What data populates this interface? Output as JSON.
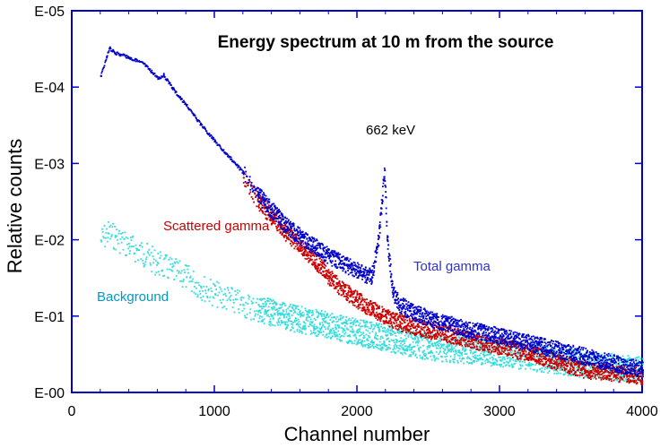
{
  "chart_data": {
    "type": "scatter",
    "title": "Energy spectrum at 10 m from the source",
    "xlabel": "Channel number",
    "ylabel": "Relative counts",
    "xlim": [
      0,
      4000
    ],
    "ylim": [
      1,
      1e-05
    ],
    "y_scale": "log",
    "grid": false,
    "x_ticks": [
      0,
      1000,
      2000,
      3000,
      4000
    ],
    "x_tick_labels": [
      "0",
      "1000",
      "2000",
      "3000",
      "4000"
    ],
    "y_ticks": [
      1e-05,
      0.0001,
      0.001,
      0.01,
      0.1,
      1
    ],
    "y_tick_labels": [
      "E-05",
      "E-04",
      "E-03",
      "E-02",
      "E-01",
      "E-00"
    ],
    "annotations": [
      {
        "text": "662 keV",
        "color": "#000000"
      },
      {
        "text": "Scattered gamma",
        "color": "#cc0000"
      },
      {
        "text": "Total gamma",
        "color": "#3333cc"
      },
      {
        "text": "Background",
        "color": "#0099cc"
      }
    ],
    "series": [
      {
        "name": "Total gamma",
        "color": "#0000cc",
        "x": [
          200,
          240,
          260,
          300,
          400,
          500,
          600,
          640,
          700,
          800,
          900,
          1000,
          1100,
          1200,
          1300,
          1400,
          1500,
          1600,
          1700,
          1800,
          1900,
          2000,
          2100,
          2150,
          2190,
          2210,
          2250,
          2300,
          2400,
          2600,
          2800,
          3000,
          3500,
          4000
        ],
        "y": [
          7e-05,
          4e-05,
          3e-05,
          3.5e-05,
          4e-05,
          4.8e-05,
          7.5e-05,
          6.8e-05,
          0.0001,
          0.00017,
          0.0003,
          0.0005,
          0.0008,
          0.0013,
          0.0025,
          0.004,
          0.0065,
          0.009,
          0.012,
          0.016,
          0.02,
          0.025,
          0.03,
          0.009,
          0.0012,
          0.01,
          0.05,
          0.07,
          0.09,
          0.12,
          0.15,
          0.18,
          0.3,
          0.5
        ]
      },
      {
        "name": "Scattered gamma",
        "color": "#cc0000",
        "x": [
          1200,
          1300,
          1400,
          1500,
          1600,
          1700,
          1800,
          1900,
          2000,
          2100,
          2200,
          2300,
          2500,
          2800,
          3200,
          3600,
          4000
        ],
        "y": [
          0.0015,
          0.003,
          0.005,
          0.008,
          0.012,
          0.018,
          0.03,
          0.045,
          0.06,
          0.08,
          0.1,
          0.12,
          0.15,
          0.2,
          0.3,
          0.5,
          0.6
        ]
      },
      {
        "name": "Background",
        "color": "#33dddd",
        "x": [
          200,
          250,
          300,
          400,
          500,
          600,
          700,
          800,
          900,
          1000,
          1200,
          1500,
          1800,
          2000,
          2500,
          3000,
          3500,
          4000
        ],
        "y": [
          0.01,
          0.008,
          0.009,
          0.012,
          0.015,
          0.02,
          0.025,
          0.03,
          0.04,
          0.05,
          0.07,
          0.1,
          0.13,
          0.16,
          0.25,
          0.3,
          0.4,
          0.5
        ]
      }
    ]
  }
}
